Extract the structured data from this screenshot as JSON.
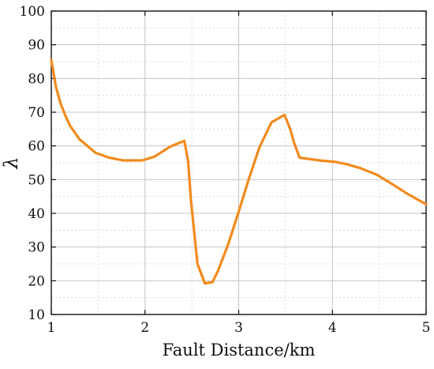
{
  "chart_data": {
    "type": "line",
    "title": "",
    "xlabel": "Fault Distance/km",
    "ylabel": "λ",
    "xlim": [
      1,
      5
    ],
    "ylim": [
      10,
      100
    ],
    "xticks": [
      1,
      2,
      3,
      4,
      5
    ],
    "yticks": [
      10,
      20,
      30,
      40,
      50,
      60,
      70,
      80,
      90,
      100
    ],
    "grid": {
      "major": true,
      "minor": true
    },
    "series": [
      {
        "color": "#F28A1E",
        "x": [
          1.0,
          1.05,
          1.1,
          1.15,
          1.2,
          1.3,
          1.47,
          1.62,
          1.77,
          1.97,
          2.1,
          2.27,
          2.42,
          2.46,
          2.49,
          2.56,
          2.64,
          2.72,
          2.78,
          2.89,
          3.0,
          3.1,
          3.22,
          3.35,
          3.49,
          3.55,
          3.59,
          3.65,
          3.86,
          4.02,
          4.15,
          4.3,
          4.47,
          4.62,
          4.8,
          5.0
        ],
        "y": [
          85.5,
          77.5,
          72.5,
          69.0,
          66.0,
          62.0,
          58.0,
          56.5,
          55.7,
          55.7,
          56.8,
          59.8,
          61.5,
          55.5,
          44.0,
          25.0,
          19.2,
          19.6,
          23.0,
          31.0,
          40.5,
          49.5,
          59.5,
          67.0,
          69.2,
          65.0,
          61.0,
          56.5,
          55.7,
          55.3,
          54.6,
          53.4,
          51.5,
          49.0,
          45.8,
          42.7
        ]
      }
    ]
  }
}
